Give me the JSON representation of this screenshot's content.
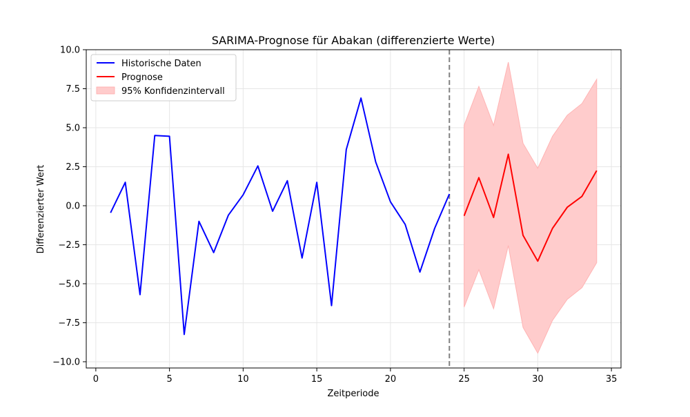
{
  "chart_data": {
    "type": "line",
    "title": "SARIMA-Prognose für Abakan (differenzierte Werte)",
    "xlabel": "Zeitperiode",
    "ylabel": "Differenzierter Wert",
    "xlim": [
      -0.65,
      35.65
    ],
    "ylim": [
      -10.4,
      10.0
    ],
    "xticks": [
      0,
      5,
      10,
      15,
      20,
      25,
      30,
      35
    ],
    "yticks": [
      -10.0,
      -7.5,
      -5.0,
      -2.5,
      0.0,
      2.5,
      5.0,
      7.5,
      10.0
    ],
    "grid": true,
    "legend_position": "top-left",
    "vertical_line_x": 24,
    "series": [
      {
        "name": "Historische Daten",
        "color": "#0000ff",
        "x": [
          1,
          2,
          3,
          4,
          5,
          6,
          7,
          8,
          9,
          10,
          11,
          12,
          13,
          14,
          15,
          16,
          17,
          18,
          19,
          20,
          21,
          22,
          23,
          24
        ],
        "y": [
          -0.45,
          1.5,
          -5.7,
          4.5,
          4.45,
          -8.25,
          -1.0,
          -3.0,
          -0.6,
          0.7,
          2.55,
          -0.35,
          1.6,
          -3.35,
          1.5,
          -6.4,
          3.6,
          6.9,
          2.8,
          0.25,
          -1.2,
          -4.25,
          -1.45,
          0.75
        ]
      },
      {
        "name": "Prognose",
        "color": "#ff0000",
        "x": [
          25,
          26,
          27,
          28,
          29,
          30,
          31,
          32,
          33,
          34
        ],
        "y": [
          -0.65,
          1.8,
          -0.75,
          3.3,
          -1.9,
          -3.55,
          -1.45,
          -0.1,
          0.6,
          2.25
        ]
      }
    ],
    "confidence_interval": {
      "name": "95% Konfidenzintervall",
      "color": "#ffcccc",
      "x": [
        25,
        26,
        27,
        28,
        29,
        30,
        31,
        32,
        33,
        34
      ],
      "lower": [
        -6.5,
        -4.1,
        -6.6,
        -2.55,
        -7.8,
        -9.45,
        -7.35,
        -6.0,
        -5.25,
        -3.65
      ],
      "upper": [
        5.15,
        7.65,
        5.15,
        9.2,
        4.0,
        2.4,
        4.45,
        5.8,
        6.55,
        8.1
      ]
    }
  }
}
